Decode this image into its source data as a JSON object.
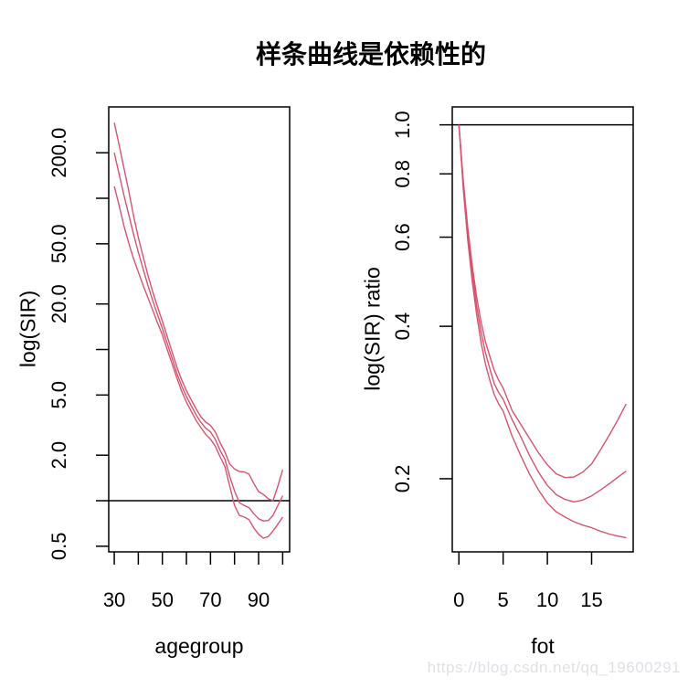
{
  "figure": {
    "title": "样条曲线是依赖性的",
    "watermark": "https://blog.csdn.net/qq_19600291",
    "background": "#ffffff",
    "curve_color": "#d9536f",
    "reference_line_color": "#000000"
  },
  "chart_data": [
    {
      "type": "line",
      "panel": "left",
      "xlabel": "agegroup",
      "ylabel": "log(SIR)",
      "y_scale": "log",
      "grid": false,
      "legend": "none",
      "xlim": [
        27.7,
        102.9
      ],
      "ylim": [
        0.459,
        402
      ],
      "x_ticks": [
        30,
        40,
        50,
        60,
        70,
        80,
        90,
        100
      ],
      "x_tick_labels": [
        "30",
        "",
        "50",
        "",
        "70",
        "",
        "90",
        ""
      ],
      "y_ticks": [
        0.5,
        1,
        2,
        5,
        10,
        20,
        50,
        100,
        200
      ],
      "y_tick_labels": [
        "0.5",
        "",
        "2.0",
        "5.0",
        "",
        "20.0",
        "50.0",
        "",
        "200.0"
      ],
      "reference_line_y": 1,
      "x": [
        30,
        32,
        34,
        36,
        38,
        40,
        42,
        44,
        46,
        48,
        50,
        52,
        54,
        56,
        58,
        60,
        62,
        64,
        66,
        68,
        70,
        72,
        74,
        76,
        78,
        80,
        82,
        84,
        86,
        88,
        90,
        92,
        94,
        96,
        98,
        100
      ],
      "series": [
        {
          "name": "estimate",
          "values": [
            200,
            145,
            105,
            78,
            58,
            44,
            34,
            26.5,
            21,
            17,
            13.8,
            11,
            8.8,
            7.0,
            5.75,
            4.9,
            4.25,
            3.7,
            3.3,
            3.02,
            2.85,
            2.55,
            2.15,
            1.88,
            1.45,
            1.16,
            0.97,
            0.93,
            0.9,
            0.82,
            0.76,
            0.735,
            0.74,
            0.8,
            0.93,
            1.08
          ]
        },
        {
          "name": "lower_ci",
          "values": [
            120,
            90,
            66,
            50.5,
            40,
            32.5,
            26.5,
            22,
            18.2,
            15,
            12.5,
            10,
            8.1,
            6.5,
            5.3,
            4.5,
            3.9,
            3.4,
            3.05,
            2.75,
            2.55,
            2.3,
            1.95,
            1.68,
            1.25,
            0.93,
            0.8,
            0.78,
            0.75,
            0.66,
            0.6,
            0.565,
            0.58,
            0.63,
            0.7,
            0.78
          ]
        },
        {
          "name": "upper_ci",
          "values": [
            316,
            226,
            159,
            112,
            77,
            55,
            41,
            31,
            24,
            19.2,
            15.4,
            12.2,
            9.7,
            7.7,
            6.3,
            5.35,
            4.65,
            4.05,
            3.6,
            3.31,
            3.15,
            2.85,
            2.42,
            2.1,
            1.75,
            1.62,
            1.56,
            1.55,
            1.5,
            1.3,
            1.15,
            1.1,
            1.03,
            1.0,
            1.25,
            1.6
          ]
        }
      ]
    },
    {
      "type": "line",
      "panel": "right",
      "xlabel": "fot",
      "ylabel": "log(SIR) ratio",
      "y_scale": "log",
      "grid": false,
      "legend": "none",
      "xlim": [
        -0.75,
        19.7
      ],
      "ylim": [
        0.1434,
        1.085
      ],
      "x_ticks": [
        0,
        5,
        10,
        15
      ],
      "x_tick_labels": [
        "0",
        "5",
        "10",
        "15"
      ],
      "y_ticks": [
        0.2,
        0.4,
        0.6,
        0.8,
        1.0
      ],
      "y_tick_labels": [
        "0.2",
        "0.4",
        "0.6",
        "0.8",
        "1.0"
      ],
      "reference_line_y": 1,
      "x": [
        0,
        0.5,
        1,
        1.5,
        2,
        2.5,
        3,
        3.5,
        4,
        4.5,
        5,
        6,
        7,
        8,
        9,
        10,
        11,
        12,
        13,
        14,
        15,
        16,
        17,
        18,
        18.9
      ],
      "series": [
        {
          "name": "estimate",
          "values": [
            1.0,
            0.76,
            0.61,
            0.51,
            0.44,
            0.39,
            0.355,
            0.33,
            0.308,
            0.296,
            0.287,
            0.262,
            0.242,
            0.222,
            0.206,
            0.194,
            0.186,
            0.182,
            0.18,
            0.1815,
            0.185,
            0.19,
            0.1955,
            0.2015,
            0.207
          ]
        },
        {
          "name": "lower_ci",
          "values": [
            1.0,
            0.745,
            0.593,
            0.492,
            0.423,
            0.372,
            0.337,
            0.313,
            0.293,
            0.281,
            0.272,
            0.243,
            0.222,
            0.204,
            0.19,
            0.179,
            0.172,
            0.168,
            0.1645,
            0.162,
            0.16,
            0.1575,
            0.1555,
            0.154,
            0.153
          ]
        },
        {
          "name": "upper_ci",
          "values": [
            1.0,
            0.775,
            0.628,
            0.528,
            0.458,
            0.408,
            0.373,
            0.349,
            0.327,
            0.313,
            0.302,
            0.273,
            0.256,
            0.24,
            0.225,
            0.213,
            0.2045,
            0.201,
            0.2015,
            0.206,
            0.214,
            0.228,
            0.244,
            0.262,
            0.281
          ]
        }
      ]
    }
  ]
}
